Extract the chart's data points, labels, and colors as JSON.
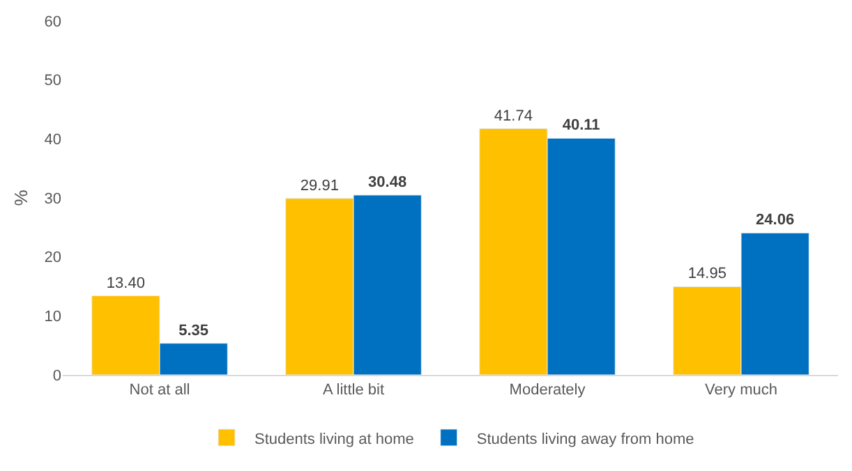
{
  "chart_data": {
    "type": "bar",
    "ylabel": "%",
    "categories": [
      "Not at all",
      "A little bit",
      "Moderately",
      "Very much"
    ],
    "series": [
      {
        "name": "Students living at home",
        "color": "#ffc000",
        "values": [
          13.4,
          29.91,
          41.74,
          14.95
        ],
        "value_labels": [
          "13.40",
          "29.91",
          "41.74",
          "14.95"
        ]
      },
      {
        "name": "Students living away from home",
        "color": "#0070c0",
        "values": [
          5.35,
          30.48,
          40.11,
          24.06
        ],
        "value_labels": [
          "5.35",
          "30.48",
          "40.11",
          "24.06"
        ]
      }
    ],
    "ylim": [
      0,
      60
    ],
    "yticks": [
      0,
      10,
      20,
      30,
      40,
      50,
      60
    ],
    "grid": false,
    "legend": "bottom"
  }
}
